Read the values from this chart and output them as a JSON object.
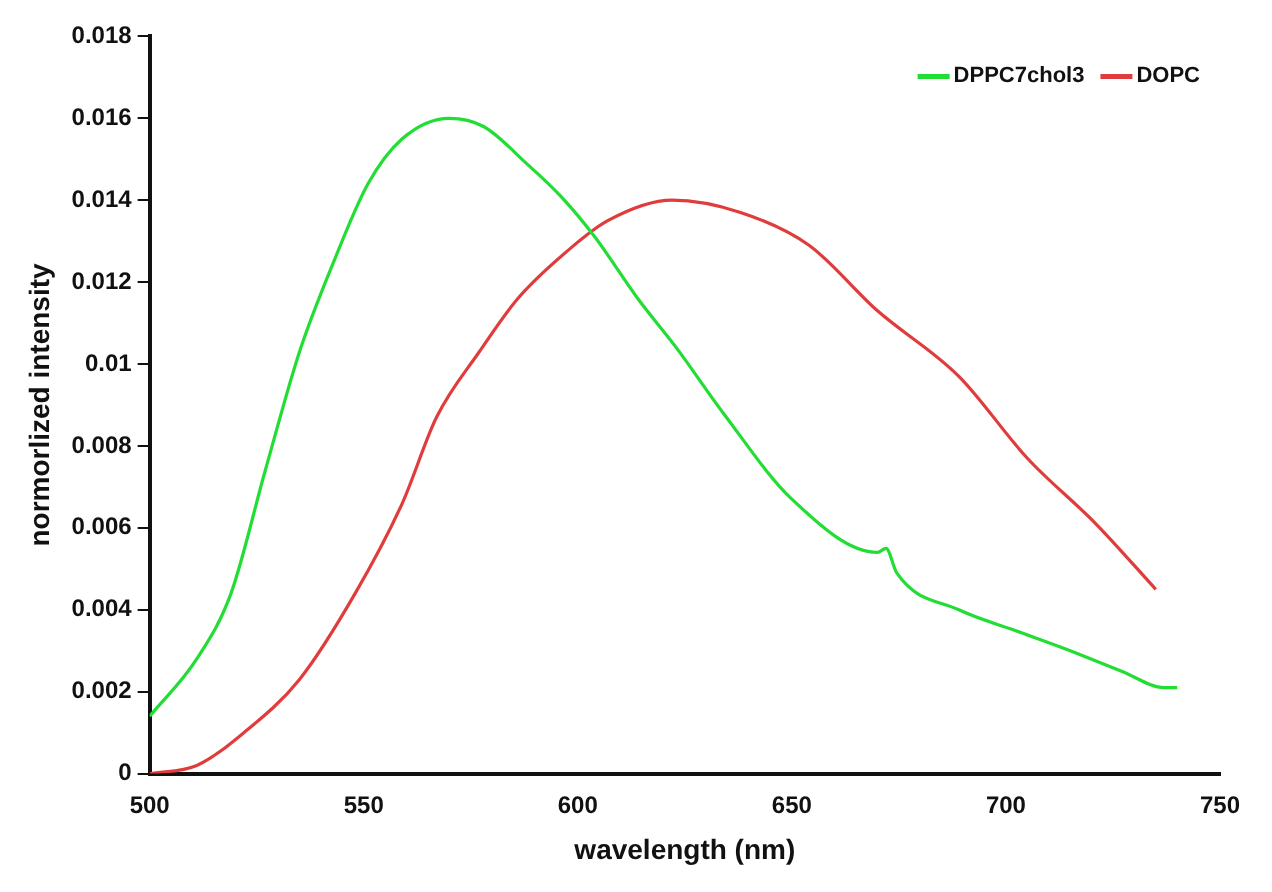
{
  "chart_data": {
    "type": "line",
    "xlabel": "wavelength (nm)",
    "ylabel": "normorlized intensity",
    "xlim": [
      500,
      750
    ],
    "xticks": [
      500,
      550,
      600,
      650,
      700,
      750
    ],
    "ylim": [
      0,
      0.018
    ],
    "yticks": [
      0,
      0.002,
      0.004,
      0.006,
      0.008,
      0.01,
      0.012,
      0.014,
      0.016,
      0.018
    ],
    "grid": false,
    "legend": "top right",
    "marker": "none",
    "line_style": "solid",
    "series": [
      {
        "name": "DPPC7chol3",
        "color": "#22dd33",
        "x": [
          500,
          511,
          519,
          527,
          535,
          543,
          551,
          559,
          570,
          578,
          588,
          596,
          604,
          614,
          623,
          634,
          650,
          670,
          672,
          674.5,
          689,
          702,
          715,
          727,
          737,
          740
        ],
        "values": [
          0.0014,
          0.0028,
          0.0044,
          0.0074,
          0.0103,
          0.0125,
          0.0144,
          0.0155,
          0.016,
          0.0158,
          0.0149,
          0.0141,
          0.0131,
          0.0116,
          0.0104,
          0.0088,
          0.0067,
          0.0054,
          0.0055,
          0.0049,
          0.004,
          0.0035,
          0.003,
          0.0025,
          0.0021,
          0.0021
        ]
      },
      {
        "name": "DOPC",
        "color": "#e03c3c",
        "x": [
          500,
          511,
          522,
          535,
          548,
          559,
          567,
          577,
          586,
          598,
          607,
          622,
          638,
          654,
          670,
          689,
          705,
          721,
          735
        ],
        "values": [
          0,
          0.0002,
          0.001,
          0.0023,
          0.0044,
          0.0066,
          0.0087,
          0.0103,
          0.0116,
          0.0128,
          0.0135,
          0.014,
          0.0137,
          0.0129,
          0.0113,
          0.0097,
          0.0077,
          0.0061,
          0.0045
        ]
      }
    ]
  }
}
